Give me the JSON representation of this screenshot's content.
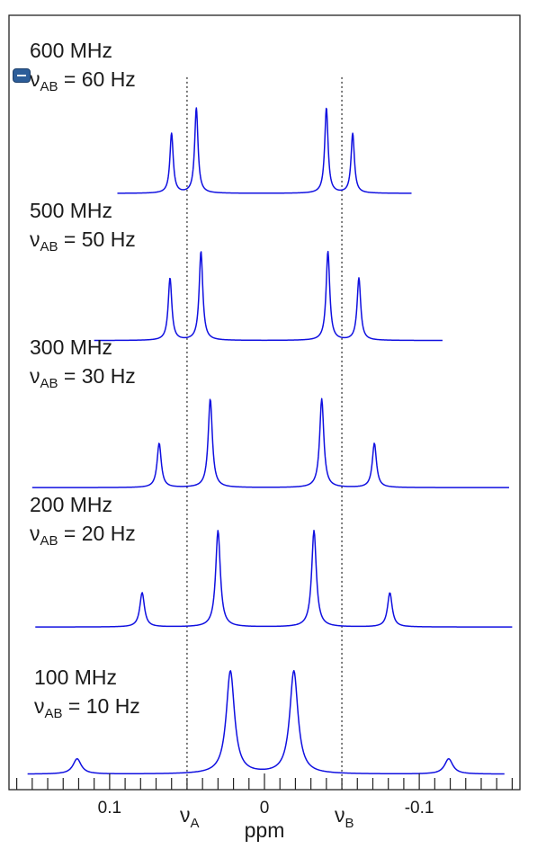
{
  "chart_data": {
    "type": "line",
    "title": "",
    "xlabel": "ppm",
    "ylabel": "",
    "xlim": [
      0.165,
      -0.165
    ],
    "x_reversed": true,
    "x_ticks": {
      "major": [
        0.1,
        0,
        -0.1
      ],
      "major_labels": [
        "0.1",
        "0",
        "-0.1"
      ],
      "minor_step": 0.01
    },
    "reference_lines": [
      {
        "name": "ν",
        "subscript": "A",
        "x": 0.05
      },
      {
        "name": "ν",
        "subscript": "B",
        "x": -0.05
      }
    ],
    "series_color": "#1010e0",
    "series": [
      {
        "line1": "600 MHz",
        "line2_prefix": "ν",
        "line2_sub": "AB",
        "line2_suffix": " = 60 Hz",
        "x_range": [
          0.095,
          -0.095
        ],
        "baseline_level": 0.77,
        "peaks": [
          {
            "x": 0.06,
            "height": 0.47
          },
          {
            "x": 0.044,
            "height": 0.67
          },
          {
            "x": -0.04,
            "height": 0.67
          },
          {
            "x": -0.057,
            "height": 0.47
          }
        ],
        "width": 0.0013
      },
      {
        "line1": "500 MHz",
        "line2_prefix": "ν",
        "line2_sub": "AB",
        "line2_suffix": " = 50 Hz",
        "x_range": [
          0.11,
          -0.115
        ],
        "baseline_level": 0.58,
        "peaks": [
          {
            "x": 0.061,
            "height": 0.49
          },
          {
            "x": 0.041,
            "height": 0.7
          },
          {
            "x": -0.041,
            "height": 0.7
          },
          {
            "x": -0.061,
            "height": 0.49
          }
        ],
        "width": 0.0014
      },
      {
        "line1": "300 MHz",
        "line2_prefix": "ν",
        "line2_sub": "AB",
        "line2_suffix": " = 30 Hz",
        "x_range": [
          0.15,
          -0.158
        ],
        "baseline_level": 0.39,
        "peaks": [
          {
            "x": 0.068,
            "height": 0.35
          },
          {
            "x": 0.035,
            "height": 0.7
          },
          {
            "x": -0.037,
            "height": 0.7
          },
          {
            "x": -0.071,
            "height": 0.35
          }
        ],
        "width": 0.0016
      },
      {
        "line1": "200 MHz",
        "line2_prefix": "ν",
        "line2_sub": "AB",
        "line2_suffix": " = 20 Hz",
        "x_range": [
          0.148,
          -0.16
        ],
        "baseline_level": 0.21,
        "peaks": [
          {
            "x": 0.079,
            "height": 0.27
          },
          {
            "x": 0.03,
            "height": 0.76
          },
          {
            "x": -0.032,
            "height": 0.76
          },
          {
            "x": -0.081,
            "height": 0.27
          }
        ],
        "width": 0.0018
      },
      {
        "line1": "100 MHz",
        "line2_prefix": "ν",
        "line2_sub": "AB",
        "line2_suffix": " = 10 Hz",
        "x_range": [
          0.153,
          -0.155
        ],
        "baseline_level": 0.02,
        "peaks": [
          {
            "x": 0.121,
            "height": 0.12
          },
          {
            "x": 0.022,
            "height": 0.81
          },
          {
            "x": -0.019,
            "height": 0.81
          },
          {
            "x": -0.119,
            "height": 0.12
          }
        ],
        "width": 0.0032
      }
    ]
  }
}
